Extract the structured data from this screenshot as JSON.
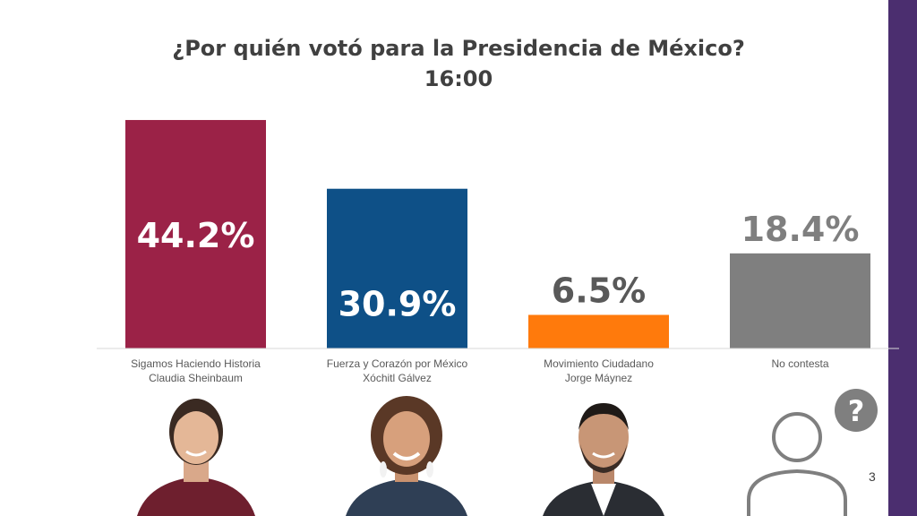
{
  "title": "¿Por quién votó para la Presidencia de México?",
  "subtitle": "16:00",
  "slide_number": "3",
  "colors": {
    "side_bar": "#4B2E6F",
    "bar_morena": "#9B2247",
    "bar_fuerza": "#0E5087",
    "bar_mc": "#FF7A0C",
    "bar_no_contesta": "#7F7F7F"
  },
  "chart_data": {
    "type": "bar",
    "title": "¿Por quién votó para la Presidencia de México?",
    "subtitle": "16:00",
    "categories": [
      "Sigamos Haciendo Historia\nClaudia Sheinbaum",
      "Fuerza y Corazón por México\nXóchitl Gálvez",
      "Movimiento Ciudadano\nJorge Máynez",
      "No contesta"
    ],
    "values": [
      44.2,
      30.9,
      6.5,
      18.4
    ],
    "value_labels": [
      "44.2%",
      "30.9%",
      "6.5%",
      "18.4%"
    ],
    "colors": [
      "#9B2247",
      "#0E5087",
      "#FF7A0C",
      "#7F7F7F"
    ],
    "xlabel": "",
    "ylabel": "",
    "grid": false,
    "legend": "none"
  },
  "icons": {
    "question": "question-mark-icon",
    "person": "person-outline-icon"
  }
}
